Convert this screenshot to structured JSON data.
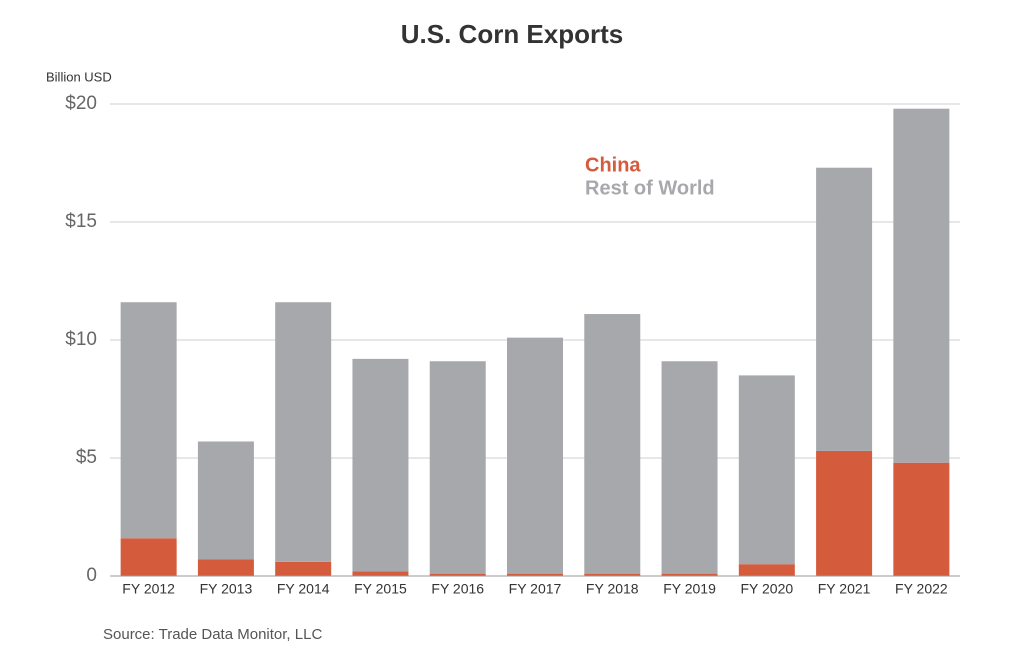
{
  "chart_data": {
    "type": "stacked_bar",
    "title": "U.S. Corn Exports",
    "y_axis_label": "Billion USD",
    "categories": [
      "FY 2012",
      "FY 2013",
      "FY 2014",
      "FY 2015",
      "FY 2016",
      "FY 2017",
      "FY 2018",
      "FY 2019",
      "FY 2020",
      "FY 2021",
      "FY 2022"
    ],
    "series": [
      {
        "name": "China",
        "color": "#d55b3d",
        "values": [
          1.6,
          0.7,
          0.6,
          0.2,
          0.1,
          0.1,
          0.1,
          0.1,
          0.5,
          5.3,
          4.8
        ]
      },
      {
        "name": "Rest of World",
        "color": "#a7a8ac",
        "values": [
          10.0,
          5.0,
          11.0,
          9.0,
          9.0,
          10.0,
          11.0,
          9.0,
          8.0,
          12.0,
          15.0
        ]
      }
    ],
    "ylim": [
      0,
      20
    ],
    "yticks": [
      0,
      {
        "value": 5,
        "label": "$5"
      },
      {
        "value": 10,
        "label": "$10"
      },
      {
        "value": 15,
        "label": "$15"
      },
      {
        "value": 20,
        "label": "$20"
      }
    ],
    "grid": true,
    "source": "Source: Trade Data Monitor, LLC"
  }
}
